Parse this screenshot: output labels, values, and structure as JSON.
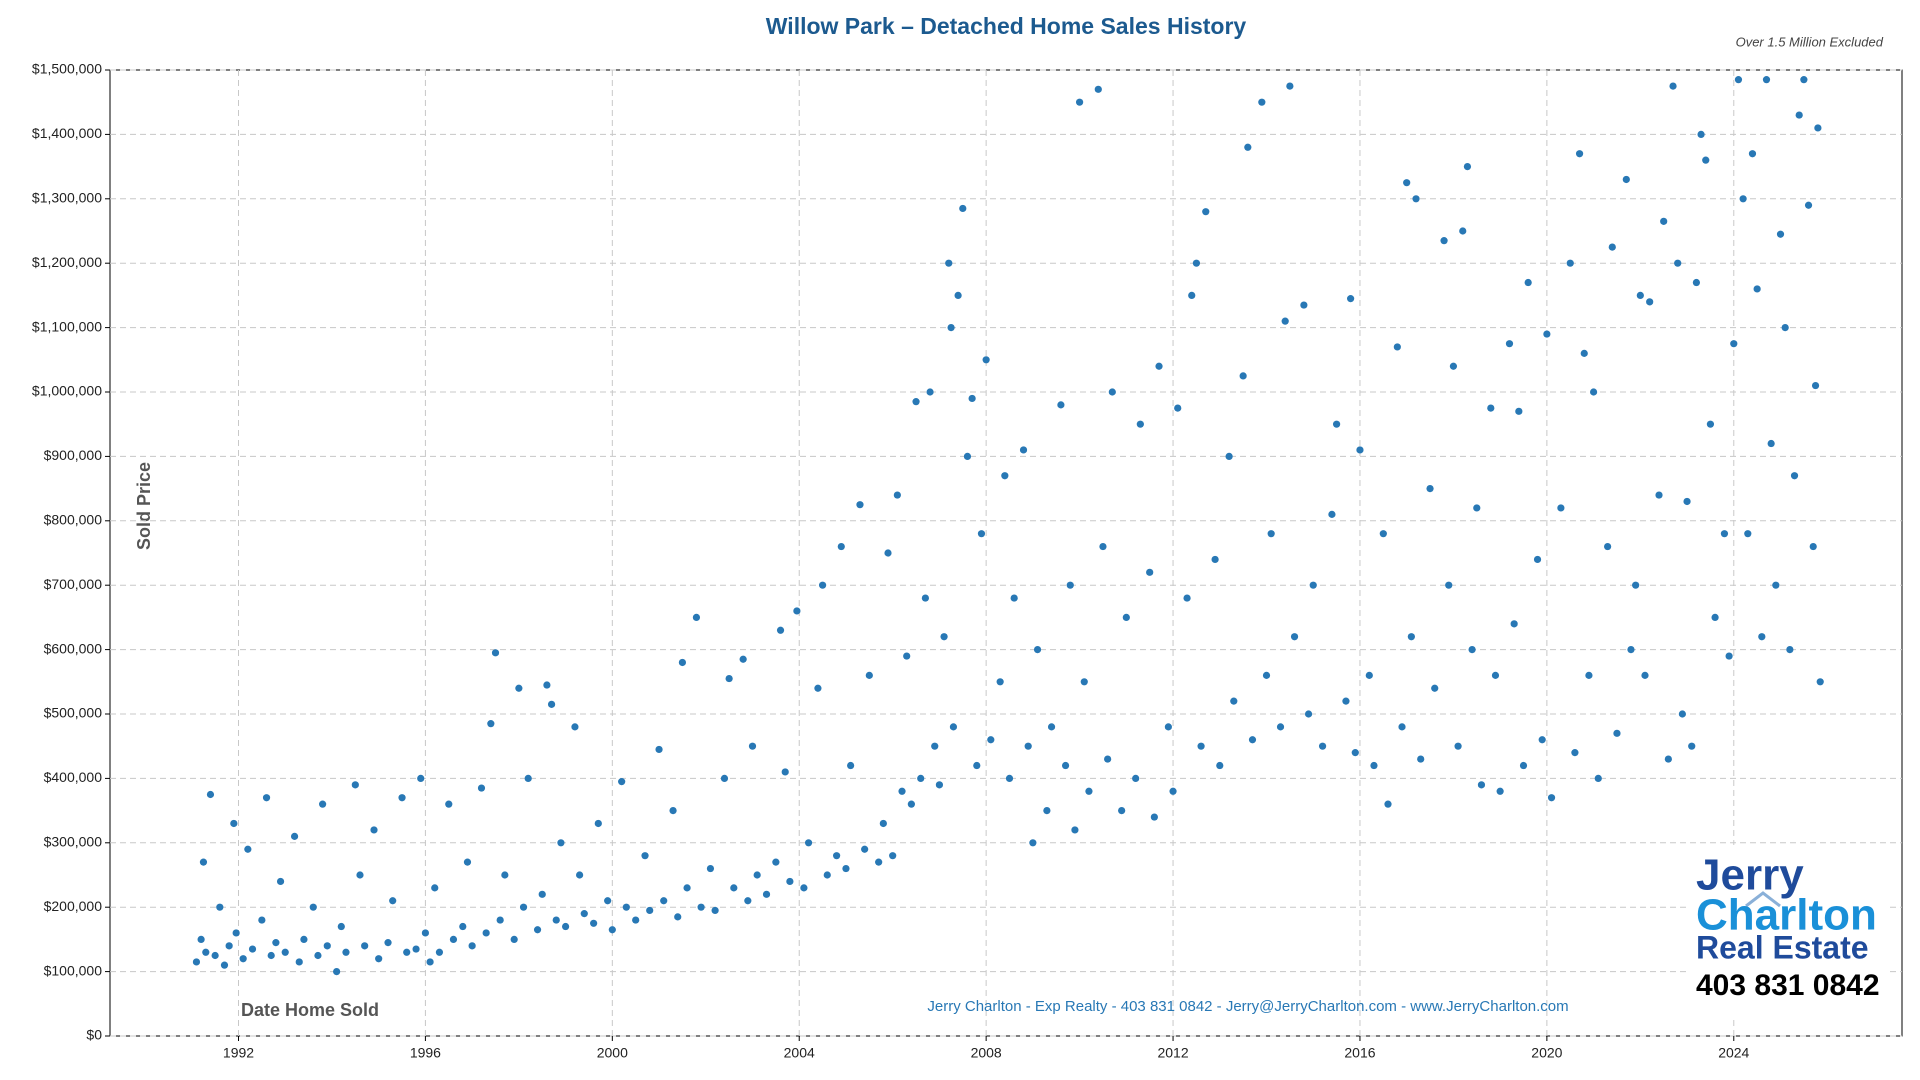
{
  "chart_data": {
    "type": "scatter",
    "title": "Willow Park – Detached Home Sales History",
    "annotations": [
      "Over 1.5 Million Excluded",
      "Jerry Charlton - Exp Realty - 403 831 0842 - Jerry@JerryCharlton.com - www.JerryCharlton.com"
    ],
    "logo": [
      "Jerry",
      "Charlton",
      "Real Estate",
      "403 831 0842"
    ],
    "x_label": "Date Home Sold",
    "y_label": "Sold Price",
    "color": "#2878b5",
    "grid": true,
    "xlim": [
      1989.25,
      2027.6
    ],
    "xticks": [
      1992,
      1996,
      2000,
      2004,
      2008,
      2012,
      2016,
      2020,
      2024
    ],
    "ylim": [
      0,
      1500000
    ],
    "yticks": [
      {
        "value": 0,
        "label": "$0"
      },
      {
        "value": 100000,
        "label": "$100,000"
      },
      {
        "value": 200000,
        "label": "$200,000"
      },
      {
        "value": 300000,
        "label": "$300,000"
      },
      {
        "value": 400000,
        "label": "$400,000"
      },
      {
        "value": 500000,
        "label": "$500,000"
      },
      {
        "value": 600000,
        "label": "$600,000"
      },
      {
        "value": 700000,
        "label": "$700,000"
      },
      {
        "value": 800000,
        "label": "$800,000"
      },
      {
        "value": 900000,
        "label": "$900,000"
      },
      {
        "value": 1000000,
        "label": "$1,000,000"
      },
      {
        "value": 1100000,
        "label": "$1,100,000"
      },
      {
        "value": 1200000,
        "label": "$1,200,000"
      },
      {
        "value": 1300000,
        "label": "$1,300,000"
      },
      {
        "value": 1400000,
        "label": "$1,400,000"
      },
      {
        "value": 1500000,
        "label": "$1,500,000"
      }
    ],
    "x": [
      1991.1,
      1991.2,
      1991.25,
      1991.3,
      1991.4,
      1991.5,
      1991.6,
      1991.7,
      1991.8,
      1991.9,
      1991.95,
      1992.1,
      1992.2,
      1992.3,
      1992.5,
      1992.6,
      1992.7,
      1992.8,
      1992.9,
      1993.0,
      1993.2,
      1993.3,
      1993.4,
      1993.6,
      1993.7,
      1993.8,
      1993.9,
      1994.1,
      1994.2,
      1994.3,
      1994.5,
      1994.6,
      1994.7,
      1994.9,
      1995.0,
      1995.2,
      1995.3,
      1995.5,
      1995.6,
      1995.8,
      1995.9,
      1996.0,
      1996.1,
      1996.2,
      1996.3,
      1996.5,
      1996.6,
      1996.8,
      1996.9,
      1997.0,
      1997.2,
      1997.3,
      1997.4,
      1997.5,
      1997.6,
      1997.7,
      1997.9,
      1998.0,
      1998.1,
      1998.2,
      1998.4,
      1998.5,
      1998.6,
      1998.7,
      1998.8,
      1998.9,
      1999.0,
      1999.2,
      1999.3,
      1999.4,
      1999.6,
      1999.7,
      1999.9,
      2000.0,
      2000.2,
      2000.3,
      2000.5,
      2000.7,
      2000.8,
      2001.0,
      2001.1,
      2001.3,
      2001.4,
      2001.5,
      2001.6,
      2001.8,
      2001.9,
      2002.1,
      2002.2,
      2002.4,
      2002.5,
      2002.6,
      2002.8,
      2002.9,
      2003.0,
      2003.1,
      2003.3,
      2003.5,
      2003.6,
      2003.7,
      2003.8,
      2003.95,
      2004.1,
      2004.2,
      2004.4,
      2004.5,
      2004.6,
      2004.8,
      2004.9,
      2005.0,
      2005.1,
      2005.3,
      2005.4,
      2005.5,
      2005.7,
      2005.8,
      2005.9,
      2006.0,
      2006.1,
      2006.2,
      2006.3,
      2006.4,
      2006.5,
      2006.6,
      2006.7,
      2006.8,
      2006.9,
      2007.0,
      2007.1,
      2007.2,
      2007.25,
      2007.3,
      2007.4,
      2007.5,
      2007.6,
      2007.7,
      2007.8,
      2007.9,
      2008.0,
      2008.1,
      2008.3,
      2008.4,
      2008.5,
      2008.6,
      2008.8,
      2008.9,
      2009.0,
      2009.1,
      2009.3,
      2009.4,
      2009.6,
      2009.7,
      2009.8,
      2009.9,
      2010.0,
      2010.1,
      2010.2,
      2010.4,
      2010.5,
      2010.6,
      2010.7,
      2010.9,
      2011.0,
      2011.2,
      2011.3,
      2011.5,
      2011.6,
      2011.7,
      2011.9,
      2012.0,
      2012.1,
      2012.3,
      2012.4,
      2012.5,
      2012.6,
      2012.7,
      2012.9,
      2013.0,
      2013.2,
      2013.3,
      2013.5,
      2013.6,
      2013.7,
      2013.9,
      2014.0,
      2014.1,
      2014.3,
      2014.4,
      2014.5,
      2014.6,
      2014.8,
      2014.9,
      2015.0,
      2015.2,
      2015.4,
      2015.5,
      2015.7,
      2015.8,
      2015.9,
      2016.0,
      2016.2,
      2016.3,
      2016.5,
      2016.6,
      2016.8,
      2016.9,
      2017.0,
      2017.1,
      2017.2,
      2017.3,
      2017.5,
      2017.6,
      2017.8,
      2017.9,
      2018.0,
      2018.1,
      2018.2,
      2018.3,
      2018.4,
      2018.5,
      2018.6,
      2018.8,
      2018.9,
      2019.0,
      2019.2,
      2019.3,
      2019.4,
      2019.5,
      2019.6,
      2019.8,
      2019.9,
      2020.0,
      2020.1,
      2020.3,
      2020.5,
      2020.6,
      2020.7,
      2020.8,
      2020.9,
      2021.0,
      2021.1,
      2021.3,
      2021.4,
      2021.5,
      2021.7,
      2021.8,
      2021.9,
      2022.0,
      2022.1,
      2022.2,
      2022.4,
      2022.5,
      2022.6,
      2022.7,
      2022.8,
      2022.9,
      2023.0,
      2023.1,
      2023.2,
      2023.3,
      2023.4,
      2023.5,
      2023.6,
      2023.8,
      2023.9,
      2024.0,
      2024.1,
      2024.2,
      2024.3,
      2024.4,
      2024.5,
      2024.6,
      2024.7,
      2024.8,
      2024.9,
      2025.0,
      2025.1,
      2025.2,
      2025.3,
      2025.4,
      2025.5,
      2025.6,
      2025.7,
      2025.75,
      2025.8,
      2025.85
    ],
    "values": [
      115000,
      150000,
      270000,
      130000,
      375000,
      125000,
      200000,
      110000,
      140000,
      330000,
      160000,
      120000,
      290000,
      135000,
      180000,
      370000,
      125000,
      145000,
      240000,
      130000,
      310000,
      115000,
      150000,
      200000,
      125000,
      360000,
      140000,
      100000,
      170000,
      130000,
      390000,
      250000,
      140000,
      320000,
      120000,
      145000,
      210000,
      370000,
      130000,
      135000,
      400000,
      160000,
      115000,
      230000,
      130000,
      360000,
      150000,
      170000,
      270000,
      140000,
      385000,
      160000,
      485000,
      595000,
      180000,
      250000,
      150000,
      540000,
      200000,
      400000,
      165000,
      220000,
      545000,
      515000,
      180000,
      300000,
      170000,
      480000,
      250000,
      190000,
      175000,
      330000,
      210000,
      165000,
      395000,
      200000,
      180000,
      280000,
      195000,
      445000,
      210000,
      350000,
      185000,
      580000,
      230000,
      650000,
      200000,
      260000,
      195000,
      400000,
      555000,
      230000,
      585000,
      210000,
      450000,
      250000,
      220000,
      270000,
      630000,
      410000,
      240000,
      660000,
      230000,
      300000,
      540000,
      700000,
      250000,
      280000,
      760000,
      260000,
      420000,
      825000,
      290000,
      560000,
      270000,
      330000,
      750000,
      280000,
      840000,
      380000,
      590000,
      360000,
      985000,
      400000,
      680000,
      1000000,
      450000,
      390000,
      620000,
      1200000,
      1100000,
      480000,
      1150000,
      1285000,
      900000,
      990000,
      420000,
      780000,
      1050000,
      460000,
      550000,
      870000,
      400000,
      680000,
      910000,
      450000,
      300000,
      600000,
      350000,
      480000,
      980000,
      420000,
      700000,
      320000,
      1450000,
      550000,
      380000,
      1470000,
      760000,
      430000,
      1000000,
      350000,
      650000,
      400000,
      950000,
      720000,
      340000,
      1040000,
      480000,
      380000,
      975000,
      680000,
      1150000,
      1200000,
      450000,
      1280000,
      740000,
      420000,
      900000,
      520000,
      1025000,
      1380000,
      460000,
      1450000,
      560000,
      780000,
      480000,
      1110000,
      1475000,
      620000,
      1135000,
      500000,
      700000,
      450000,
      810000,
      950000,
      520000,
      1145000,
      440000,
      910000,
      560000,
      420000,
      780000,
      360000,
      1070000,
      480000,
      1325000,
      620000,
      1300000,
      430000,
      850000,
      540000,
      1235000,
      700000,
      1040000,
      450000,
      1250000,
      1350000,
      600000,
      820000,
      390000,
      975000,
      560000,
      380000,
      1075000,
      640000,
      970000,
      420000,
      1170000,
      740000,
      460000,
      1090000,
      370000,
      820000,
      1200000,
      440000,
      1370000,
      1060000,
      560000,
      1000000,
      400000,
      760000,
      1225000,
      470000,
      1330000,
      600000,
      700000,
      1150000,
      560000,
      1140000,
      840000,
      1265000,
      430000,
      1475000,
      1200000,
      500000,
      830000,
      450000,
      1170000,
      1400000,
      1360000,
      950000,
      650000,
      780000,
      590000,
      1075000,
      1485000,
      1300000,
      780000,
      1370000,
      1160000,
      620000,
      1485000,
      920000,
      700000,
      1245000,
      1100000,
      600000,
      870000,
      1430000,
      1485000,
      1290000,
      760000,
      1010000,
      1410000,
      550000
    ]
  }
}
